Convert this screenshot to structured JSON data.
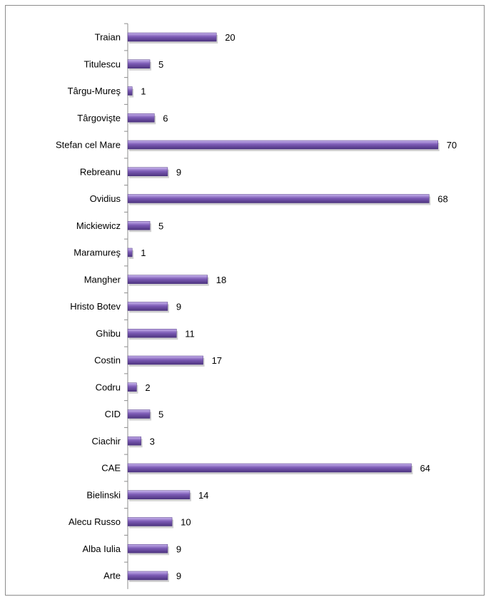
{
  "chart_data": {
    "type": "bar",
    "orientation": "horizontal",
    "categories": [
      "Traian",
      "Titulescu",
      "Târgu-Mureş",
      "Târgovişte",
      "Stefan cel Mare",
      "Rebreanu",
      "Ovidius",
      "Mickiewicz",
      "Maramureş",
      "Mangher",
      "Hristo Botev",
      "Ghibu",
      "Costin",
      "Codru",
      "CID",
      "Ciachir",
      "CAE",
      "Bielinski",
      "Alecu Russo",
      "Alba Iulia",
      "Arte"
    ],
    "values": [
      20,
      5,
      1,
      6,
      70,
      9,
      68,
      5,
      1,
      18,
      9,
      11,
      17,
      2,
      5,
      3,
      64,
      14,
      10,
      9,
      9
    ],
    "value_labels": [
      "20",
      "5",
      "1",
      "6",
      "70",
      "9",
      "68",
      "5",
      "1",
      "18",
      "9",
      "11",
      "17",
      "2",
      "5",
      "3",
      "64",
      "14",
      "10",
      "9",
      "9"
    ],
    "xlim": [
      0,
      72
    ],
    "grid": false,
    "legend": "none",
    "colors": {
      "bar": "#7d5cb6",
      "bar_light": "#c9b5ee",
      "bar_dark": "#4d3480",
      "axis": "#8c8c8c"
    }
  }
}
